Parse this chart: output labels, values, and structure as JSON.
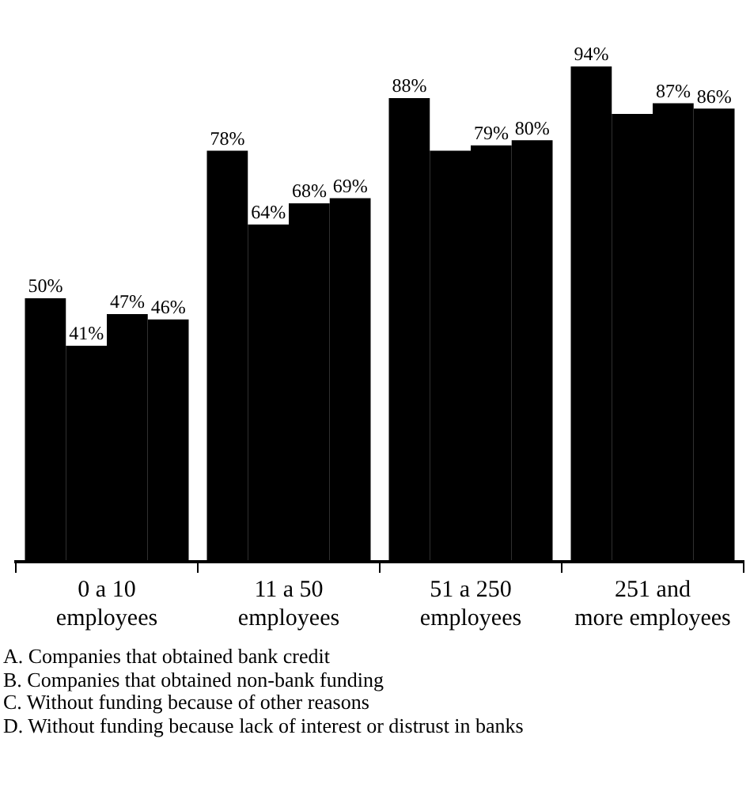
{
  "chart_data": {
    "type": "bar",
    "categories": [
      "0 a 10\nemployees",
      "11 a 50\nemployees",
      "51 a 250\nemployees",
      "251 and\nmore employees"
    ],
    "series": [
      {
        "color": "#000000",
        "values": [
          50,
          78,
          88,
          94
        ],
        "value_labels": [
          "50%",
          "78%",
          "88%",
          "94%"
        ]
      },
      {
        "color": "#000000",
        "values": [
          41,
          64,
          78,
          85
        ],
        "value_labels": [
          "41%",
          "64%",
          null,
          null
        ]
      },
      {
        "color": "#000000",
        "values": [
          47,
          68,
          79,
          87
        ],
        "value_labels": [
          "47%",
          "68%",
          "79%",
          "87%"
        ]
      },
      {
        "color": "#000000",
        "values": [
          46,
          69,
          80,
          86
        ],
        "value_labels": [
          "46%",
          "69%",
          "80%",
          "86%"
        ]
      }
    ],
    "grid": false,
    "legend": false,
    "annotations": [
      "A. Companies that obtained bank credit",
      "B. Companies that obtained non-bank funding",
      "C. Without funding because of other reasons",
      "D. Without funding because lack of interest or distrust in banks"
    ]
  }
}
